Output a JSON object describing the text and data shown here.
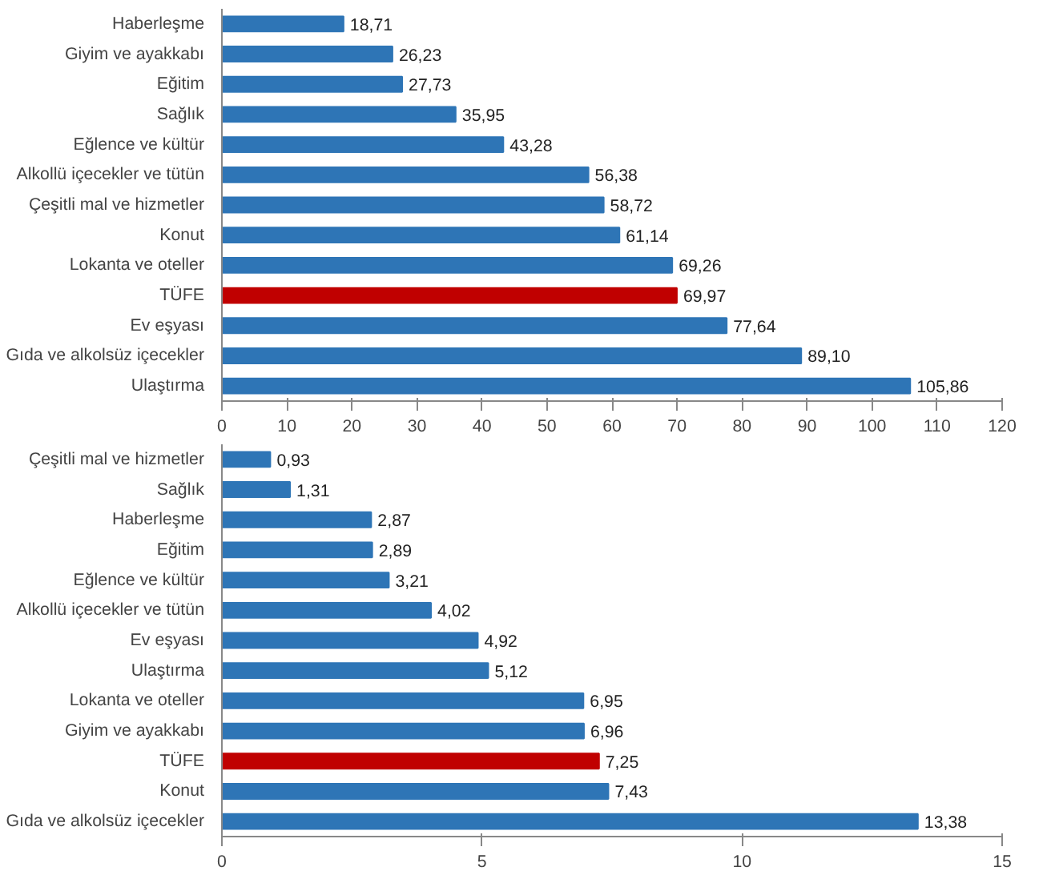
{
  "chart_data": [
    {
      "type": "bar",
      "orientation": "horizontal",
      "categories": [
        "Haberleşme",
        "Giyim ve ayakkabı",
        "Eğitim",
        "Sağlık",
        "Eğlence ve kültür",
        "Alkollü içecekler ve tütün",
        "Çeşitli mal ve hizmetler",
        "Konut",
        "Lokanta ve oteller",
        "TÜFE",
        "Ev eşyası",
        "Gıda ve alkolsüz içecekler",
        "Ulaştırma"
      ],
      "values": [
        18.71,
        26.23,
        27.73,
        35.95,
        43.28,
        56.38,
        58.72,
        61.14,
        69.26,
        69.97,
        77.64,
        89.1,
        105.86
      ],
      "colors": [
        "#2e75b6",
        "#2e75b6",
        "#2e75b6",
        "#2e75b6",
        "#2e75b6",
        "#2e75b6",
        "#2e75b6",
        "#2e75b6",
        "#2e75b6",
        "#c00000",
        "#2e75b6",
        "#2e75b6",
        "#2e75b6"
      ],
      "value_labels": [
        "18,71",
        "26,23",
        "27,73",
        "35,95",
        "43,28",
        "56,38",
        "58,72",
        "61,14",
        "69,26",
        "69,97",
        "77,64",
        "89,10",
        "105,86"
      ],
      "xlim": [
        0,
        120
      ],
      "xticks": [
        0,
        10,
        20,
        30,
        40,
        50,
        60,
        70,
        80,
        90,
        100,
        110,
        120
      ]
    },
    {
      "type": "bar",
      "orientation": "horizontal",
      "categories": [
        "Çeşitli mal ve hizmetler",
        "Sağlık",
        "Haberleşme",
        "Eğitim",
        "Eğlence ve kültür",
        "Alkollü içecekler ve tütün",
        "Ev eşyası",
        "Ulaştırma",
        "Lokanta ve oteller",
        "Giyim ve ayakkabı",
        "TÜFE",
        "Konut",
        "Gıda ve alkolsüz içecekler"
      ],
      "values": [
        0.93,
        1.31,
        2.87,
        2.89,
        3.21,
        4.02,
        4.92,
        5.12,
        6.95,
        6.96,
        7.25,
        7.43,
        13.38
      ],
      "colors": [
        "#2e75b6",
        "#2e75b6",
        "#2e75b6",
        "#2e75b6",
        "#2e75b6",
        "#2e75b6",
        "#2e75b6",
        "#2e75b6",
        "#2e75b6",
        "#2e75b6",
        "#c00000",
        "#2e75b6",
        "#2e75b6"
      ],
      "value_labels": [
        "0,93",
        "1,31",
        "2,87",
        "2,89",
        "3,21",
        "4,02",
        "4,92",
        "5,12",
        "6,95",
        "6,96",
        "7,25",
        "7,43",
        "13,38"
      ],
      "xlim": [
        0,
        15
      ],
      "xticks": [
        0,
        5,
        10,
        15
      ]
    }
  ]
}
